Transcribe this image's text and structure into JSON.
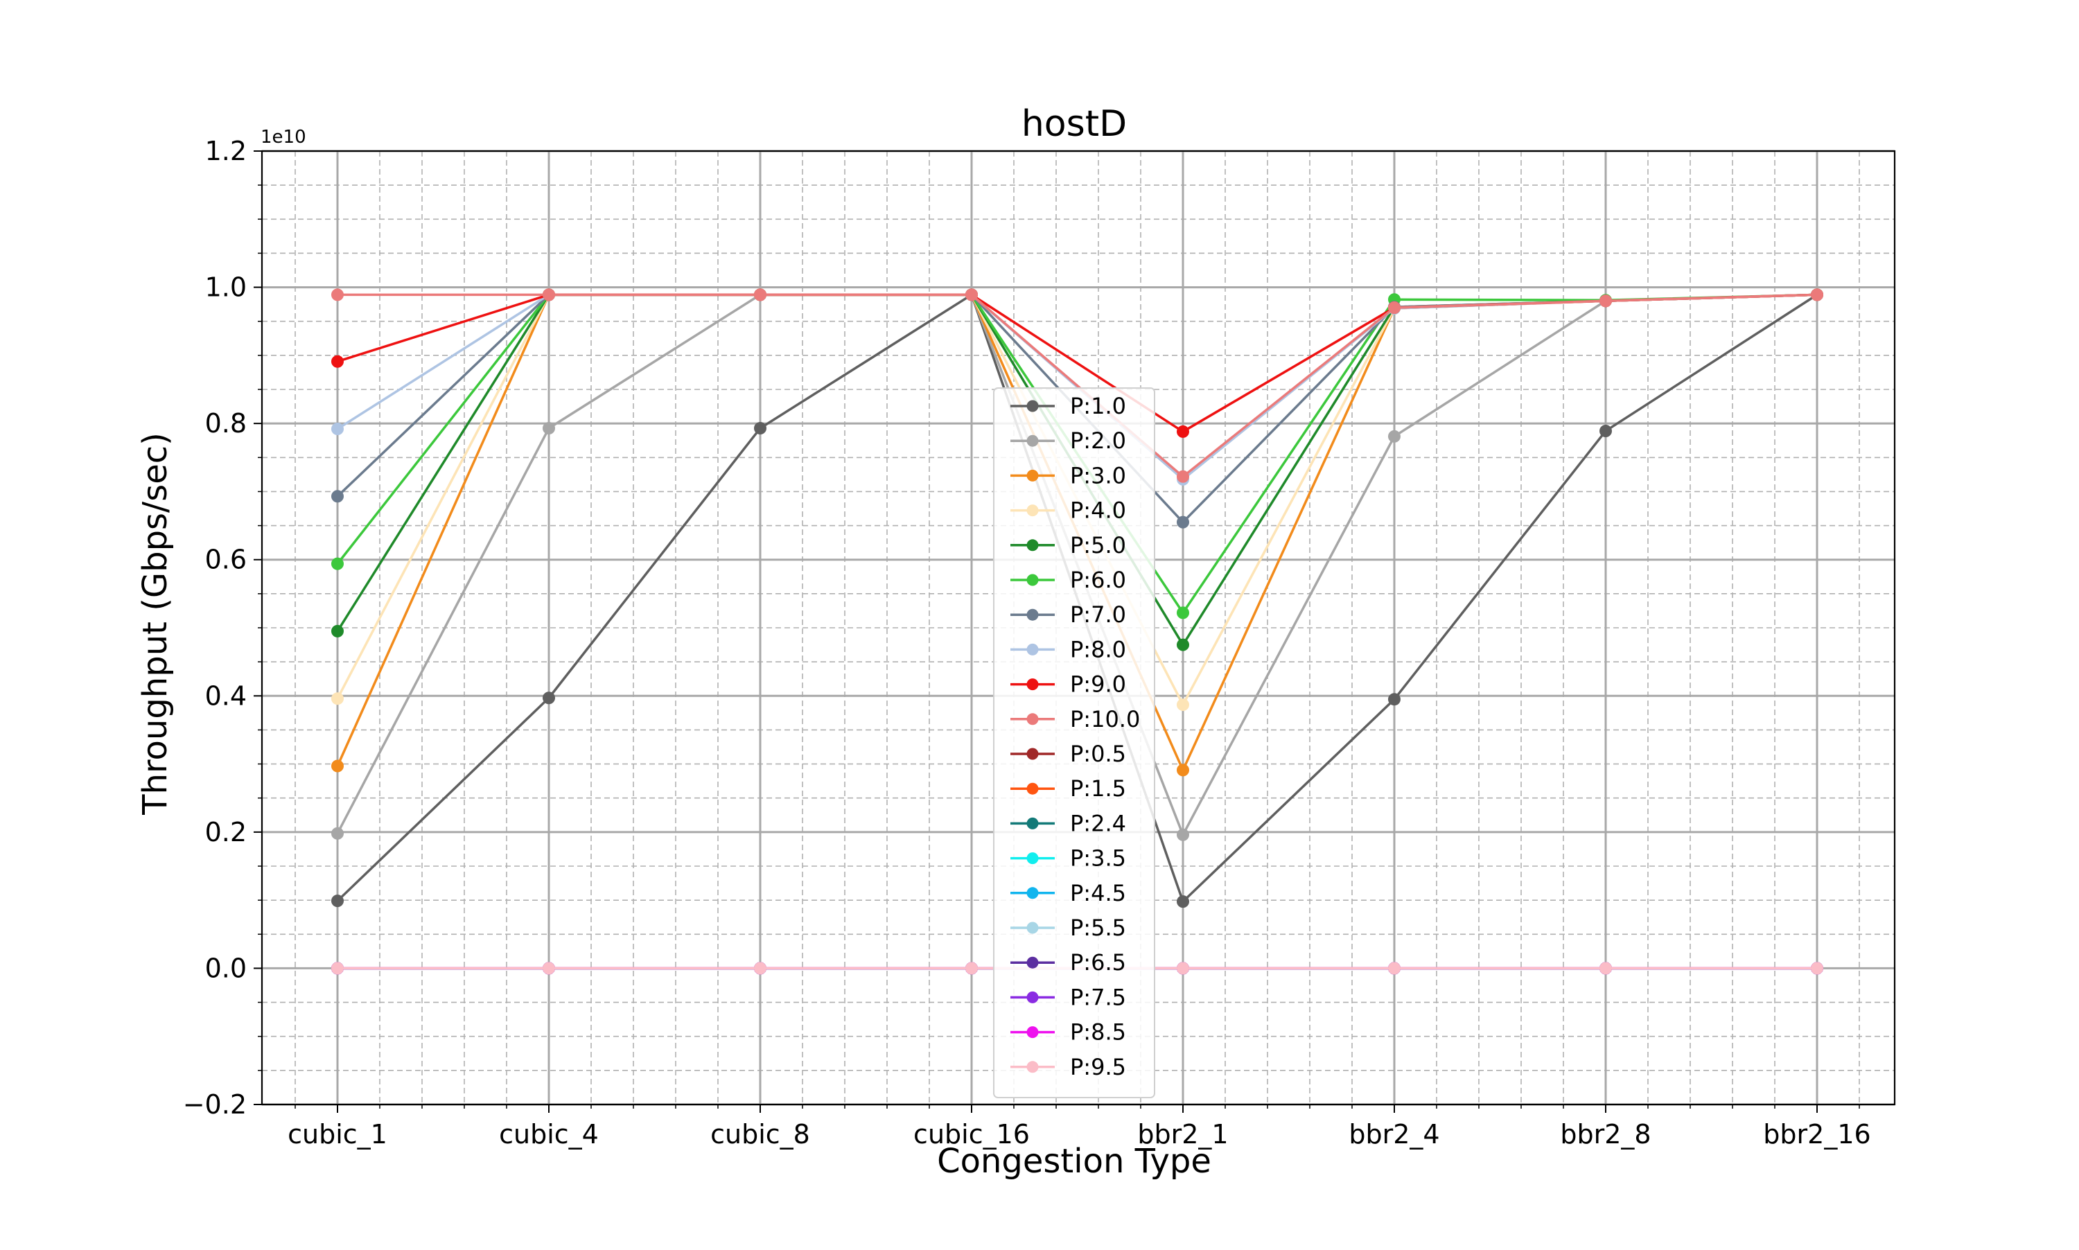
{
  "chart_data": {
    "type": "line",
    "title": "hostD",
    "xlabel": "Congestion Type",
    "ylabel": "Throughput (Gbps/sec)",
    "offset_label": "1e10",
    "categories": [
      "cubic_1",
      "cubic_4",
      "cubic_8",
      "cubic_16",
      "bbr2_1",
      "bbr2_4",
      "bbr2_8",
      "bbr2_16"
    ],
    "ylim": [
      -2000000000,
      12000000000
    ],
    "yticks": [
      -2000000000,
      0,
      2000000000,
      4000000000,
      6000000000,
      8000000000,
      10000000000,
      12000000000
    ],
    "ytick_labels": [
      "−0.2",
      "0.0",
      "0.2",
      "0.4",
      "0.6",
      "0.8",
      "1.0",
      "1.2"
    ],
    "grid": true,
    "legend_position": "center",
    "series": [
      {
        "name": "P:1.0",
        "color": "#5f5f5f",
        "values": [
          990000000,
          3970000000,
          7930000000,
          9890000000,
          980000000,
          3950000000,
          7890000000,
          9890000000
        ]
      },
      {
        "name": "P:2.0",
        "color": "#a6a6a6",
        "values": [
          1980000000,
          7930000000,
          9890000000,
          9890000000,
          1960000000,
          7810000000,
          9800000000,
          9890000000
        ]
      },
      {
        "name": "P:3.0",
        "color": "#f28b1b",
        "values": [
          2970000000,
          9890000000,
          9890000000,
          9890000000,
          2910000000,
          9690000000,
          9800000000,
          9890000000
        ]
      },
      {
        "name": "P:4.0",
        "color": "#fde4b6",
        "values": [
          3960000000,
          9890000000,
          9890000000,
          9890000000,
          3870000000,
          9690000000,
          9800000000,
          9890000000
        ]
      },
      {
        "name": "P:5.0",
        "color": "#1f8a2a",
        "values": [
          4950000000,
          9890000000,
          9890000000,
          9890000000,
          4750000000,
          9710000000,
          9800000000,
          9890000000
        ]
      },
      {
        "name": "P:6.0",
        "color": "#3cc83c",
        "values": [
          5940000000,
          9890000000,
          9890000000,
          9890000000,
          5220000000,
          9820000000,
          9810000000,
          9890000000
        ]
      },
      {
        "name": "P:7.0",
        "color": "#6b7b8e",
        "values": [
          6930000000,
          9890000000,
          9890000000,
          9890000000,
          6550000000,
          9710000000,
          9800000000,
          9890000000
        ]
      },
      {
        "name": "P:8.0",
        "color": "#aec4e3",
        "values": [
          7920000000,
          9890000000,
          9890000000,
          9890000000,
          7180000000,
          9690000000,
          9800000000,
          9890000000
        ]
      },
      {
        "name": "P:9.0",
        "color": "#ee1111",
        "values": [
          8910000000,
          9890000000,
          9890000000,
          9890000000,
          7880000000,
          9700000000,
          9800000000,
          9890000000
        ]
      },
      {
        "name": "P:10.0",
        "color": "#eb7a7a",
        "values": [
          9890000000,
          9890000000,
          9890000000,
          9890000000,
          7220000000,
          9700000000,
          9800000000,
          9890000000
        ]
      },
      {
        "name": "P:0.5",
        "color": "#a02828",
        "values": [
          0,
          0,
          0,
          0,
          0,
          0,
          0,
          0
        ]
      },
      {
        "name": "P:1.5",
        "color": "#ff5511",
        "values": [
          0,
          0,
          0,
          0,
          0,
          0,
          0,
          0
        ]
      },
      {
        "name": "P:2.4",
        "color": "#137a78",
        "values": [
          0,
          0,
          0,
          0,
          0,
          0,
          0,
          0
        ]
      },
      {
        "name": "P:3.5",
        "color": "#11eeee",
        "values": [
          0,
          0,
          0,
          0,
          0,
          0,
          0,
          0
        ]
      },
      {
        "name": "P:4.5",
        "color": "#11b5ee",
        "values": [
          0,
          0,
          0,
          0,
          0,
          0,
          0,
          0
        ]
      },
      {
        "name": "P:5.5",
        "color": "#a8d6e6",
        "values": [
          0,
          0,
          0,
          0,
          0,
          0,
          0,
          0
        ]
      },
      {
        "name": "P:6.5",
        "color": "#5c2ea0",
        "values": [
          0,
          0,
          0,
          0,
          0,
          0,
          0,
          0
        ]
      },
      {
        "name": "P:7.5",
        "color": "#8a2be2",
        "values": [
          0,
          0,
          0,
          0,
          0,
          0,
          0,
          0
        ]
      },
      {
        "name": "P:8.5",
        "color": "#ee11ee",
        "values": [
          0,
          0,
          0,
          0,
          0,
          0,
          0,
          0
        ]
      },
      {
        "name": "P:9.5",
        "color": "#fbbcc7",
        "values": [
          0,
          0,
          0,
          0,
          0,
          0,
          0,
          0
        ]
      }
    ]
  }
}
